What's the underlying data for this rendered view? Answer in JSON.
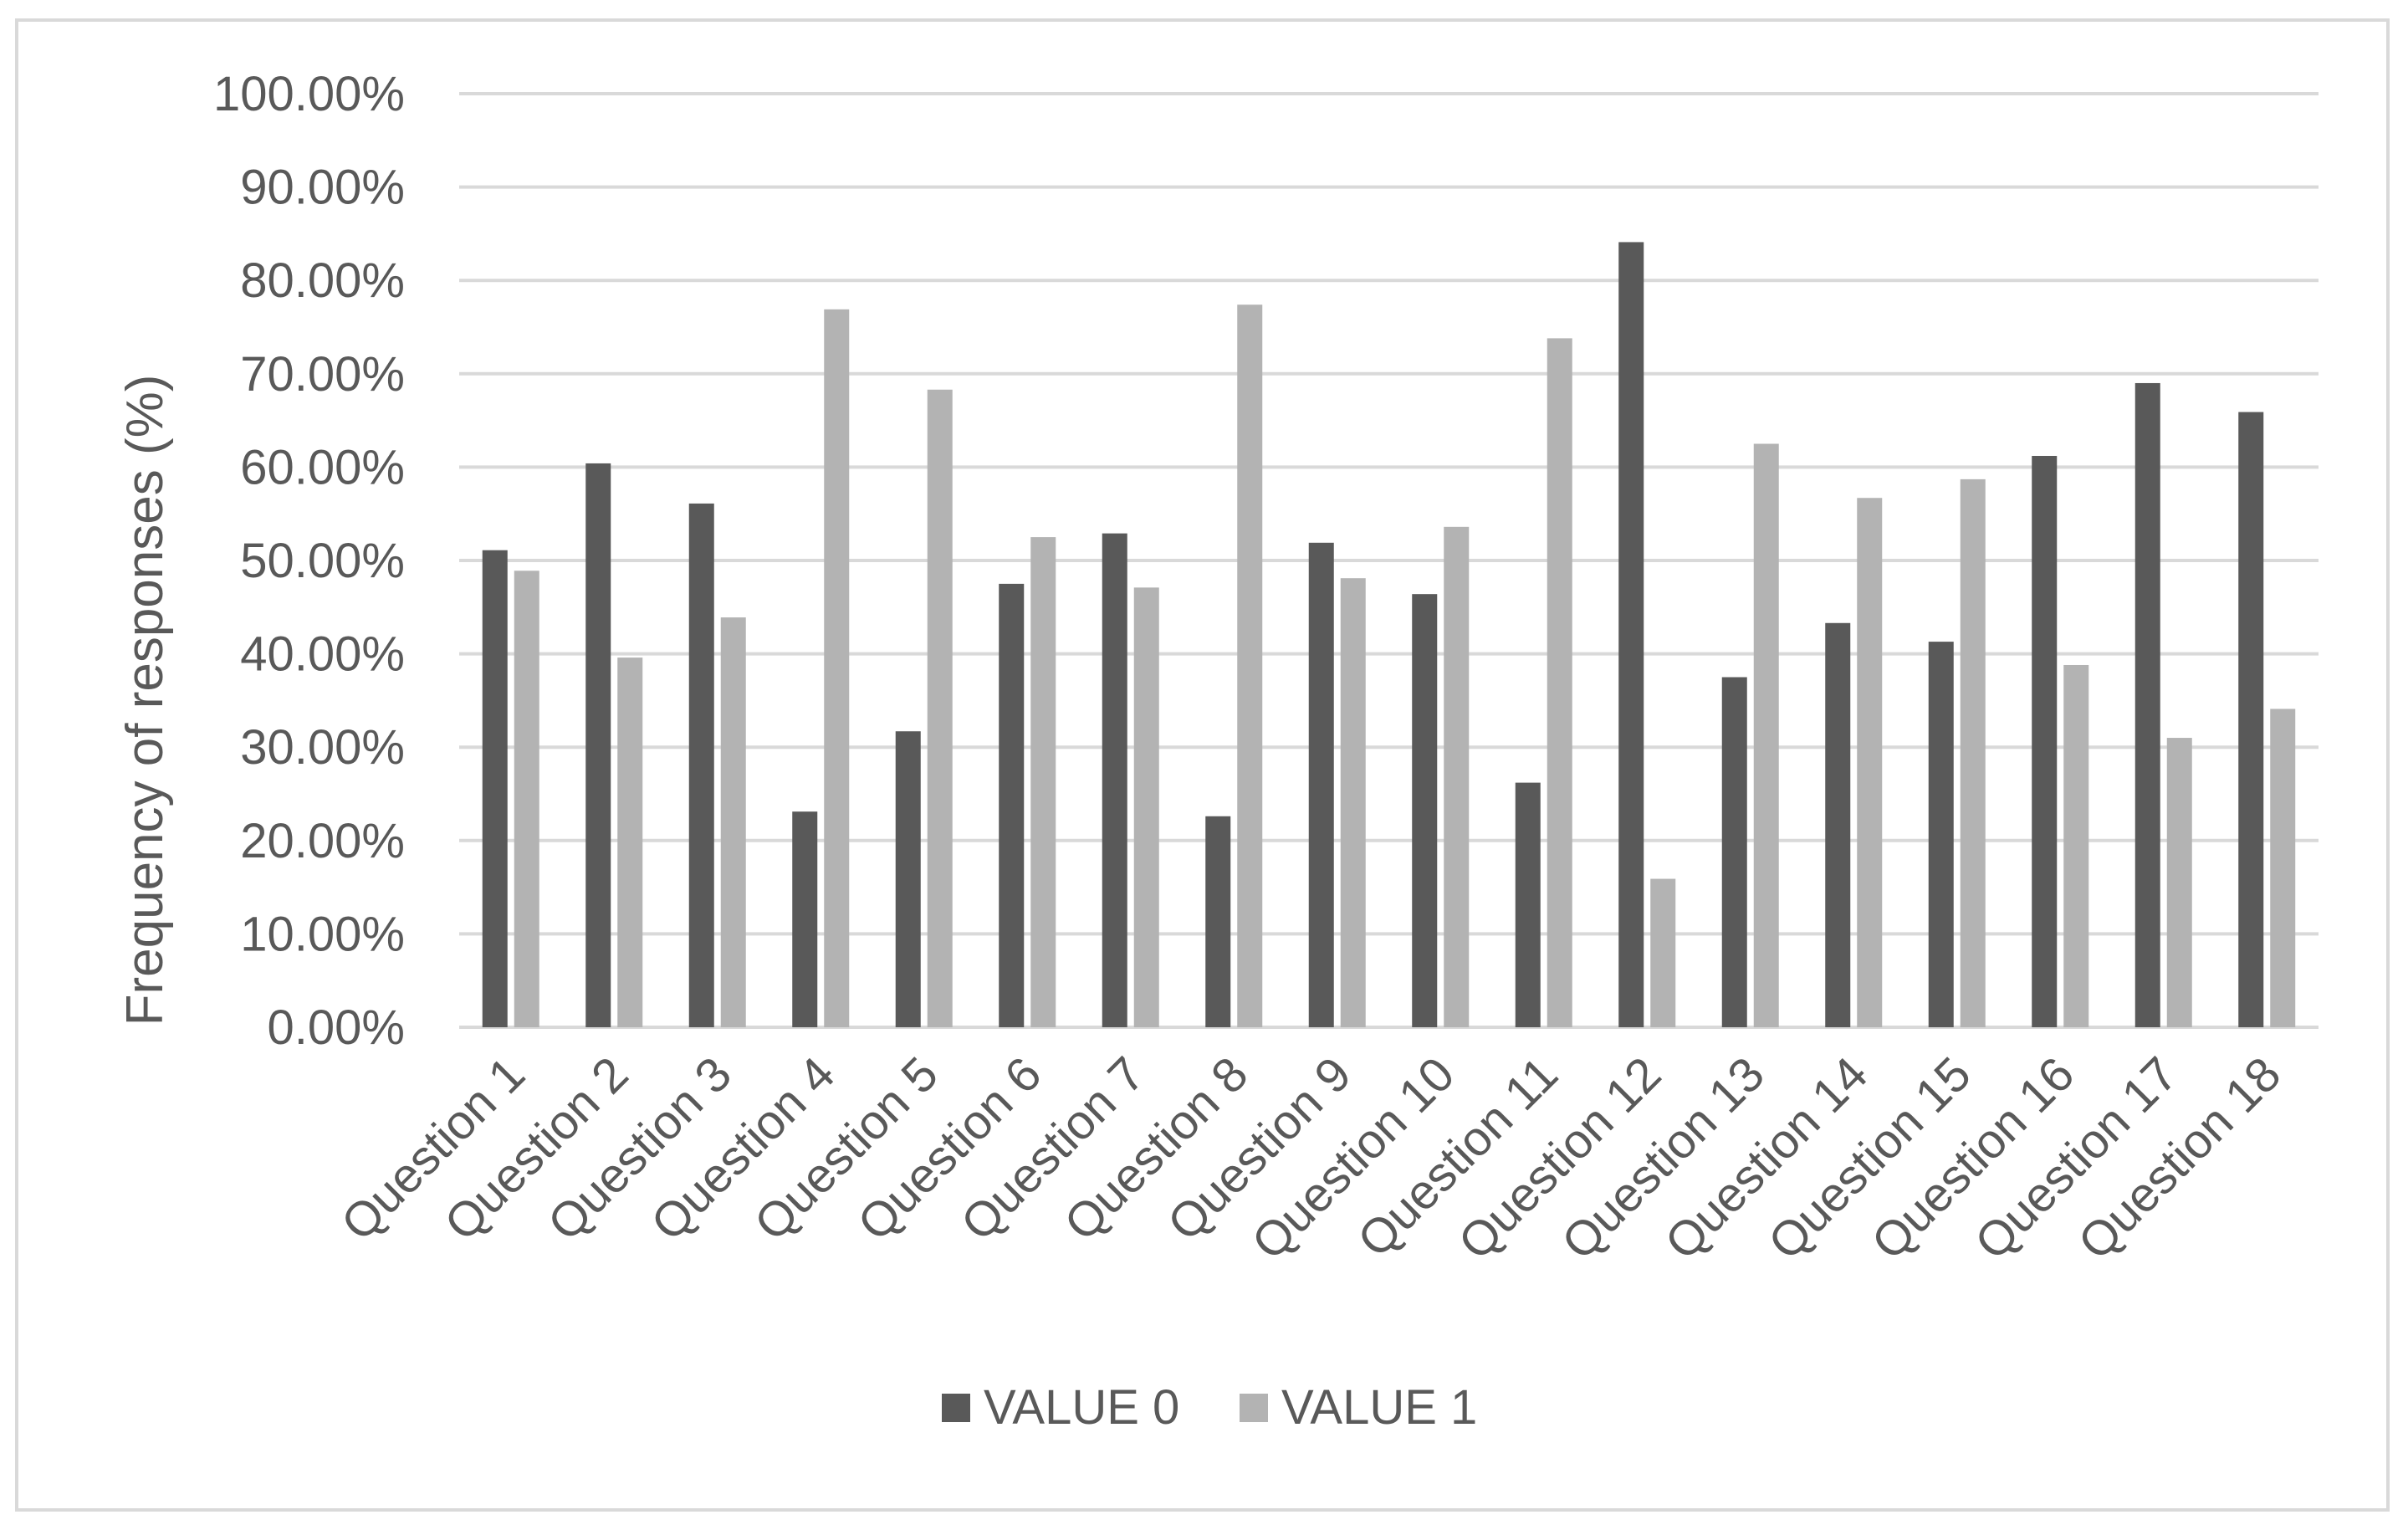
{
  "chart_data": {
    "type": "bar",
    "title": "",
    "xlabel": "",
    "ylabel": "Frequency of responses (%)",
    "ylim": [
      0,
      100
    ],
    "yticks": [
      "0.00%",
      "10.00%",
      "20.00%",
      "30.00%",
      "40.00%",
      "50.00%",
      "60.00%",
      "70.00%",
      "80.00%",
      "90.00%",
      "100.00%"
    ],
    "categories": [
      "Question 1",
      "Question 2",
      "Question 3",
      "Question 4",
      "Question 5",
      "Question 6",
      "Question 7",
      "Question 8",
      "Question 9",
      "Question 10",
      "Question 11",
      "Question 12",
      "Question 13",
      "Question 14",
      "Question 15",
      "Question 16",
      "Question 17",
      "Question 18"
    ],
    "series": [
      {
        "name": "VALUE 0",
        "color": "#595959",
        "values": [
          51.1,
          60.4,
          56.1,
          23.1,
          31.7,
          47.5,
          52.9,
          22.6,
          51.9,
          46.4,
          26.2,
          84.1,
          37.5,
          43.3,
          41.3,
          61.2,
          69.0,
          65.9
        ]
      },
      {
        "name": "VALUE 1",
        "color": "#b3b3b3",
        "values": [
          48.9,
          39.6,
          43.9,
          76.9,
          68.3,
          52.5,
          47.1,
          77.4,
          48.1,
          53.6,
          73.8,
          15.9,
          62.5,
          56.7,
          58.7,
          38.8,
          31.0,
          34.1
        ]
      }
    ],
    "grid": true,
    "legend_position": "bottom"
  }
}
